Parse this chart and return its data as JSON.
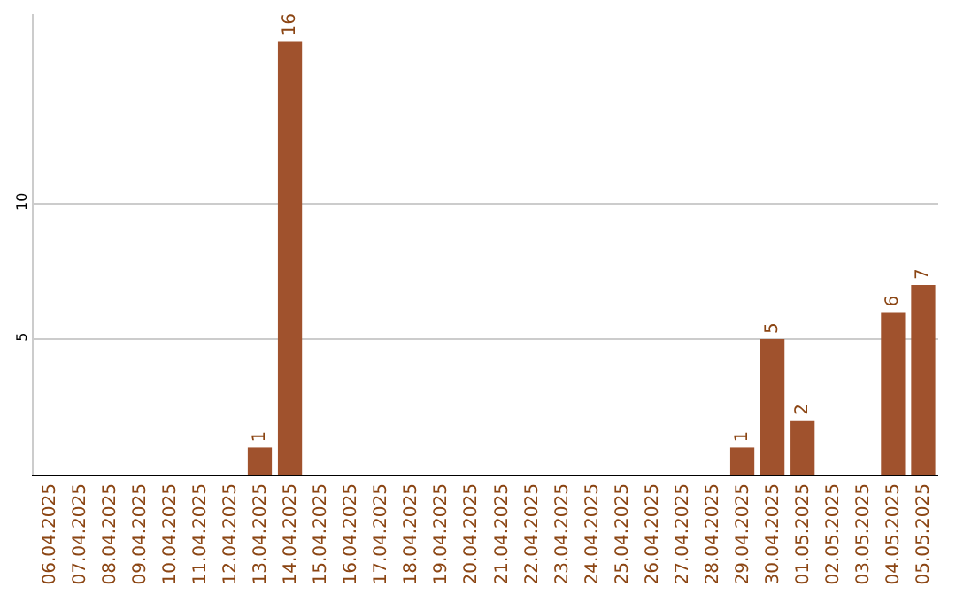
{
  "chart_data": {
    "type": "bar",
    "categories": [
      "06.04.2025",
      "07.04.2025",
      "08.04.2025",
      "09.04.2025",
      "10.04.2025",
      "11.04.2025",
      "12.04.2025",
      "13.04.2025",
      "14.04.2025",
      "15.04.2025",
      "16.04.2025",
      "17.04.2025",
      "18.04.2025",
      "19.04.2025",
      "20.04.2025",
      "21.04.2025",
      "22.04.2025",
      "23.04.2025",
      "24.04.2025",
      "25.04.2025",
      "26.04.2025",
      "27.04.2025",
      "28.04.2025",
      "29.04.2025",
      "30.04.2025",
      "01.05.2025",
      "02.05.2025",
      "03.05.2025",
      "04.05.2025",
      "05.05.2025"
    ],
    "values": [
      0,
      0,
      0,
      0,
      0,
      0,
      0,
      1,
      16,
      0,
      0,
      0,
      0,
      0,
      0,
      0,
      0,
      0,
      0,
      0,
      0,
      0,
      0,
      1,
      5,
      2,
      0,
      0,
      6,
      7
    ],
    "value_labels": [
      null,
      null,
      null,
      null,
      null,
      null,
      null,
      "1",
      "16",
      null,
      null,
      null,
      null,
      null,
      null,
      null,
      null,
      null,
      null,
      null,
      null,
      null,
      null,
      "1",
      "5",
      "2",
      null,
      null,
      "6",
      "7"
    ],
    "color": "#a0522d",
    "ylim": [
      0,
      17
    ],
    "yticks": [
      5,
      10
    ],
    "grid": "y"
  }
}
